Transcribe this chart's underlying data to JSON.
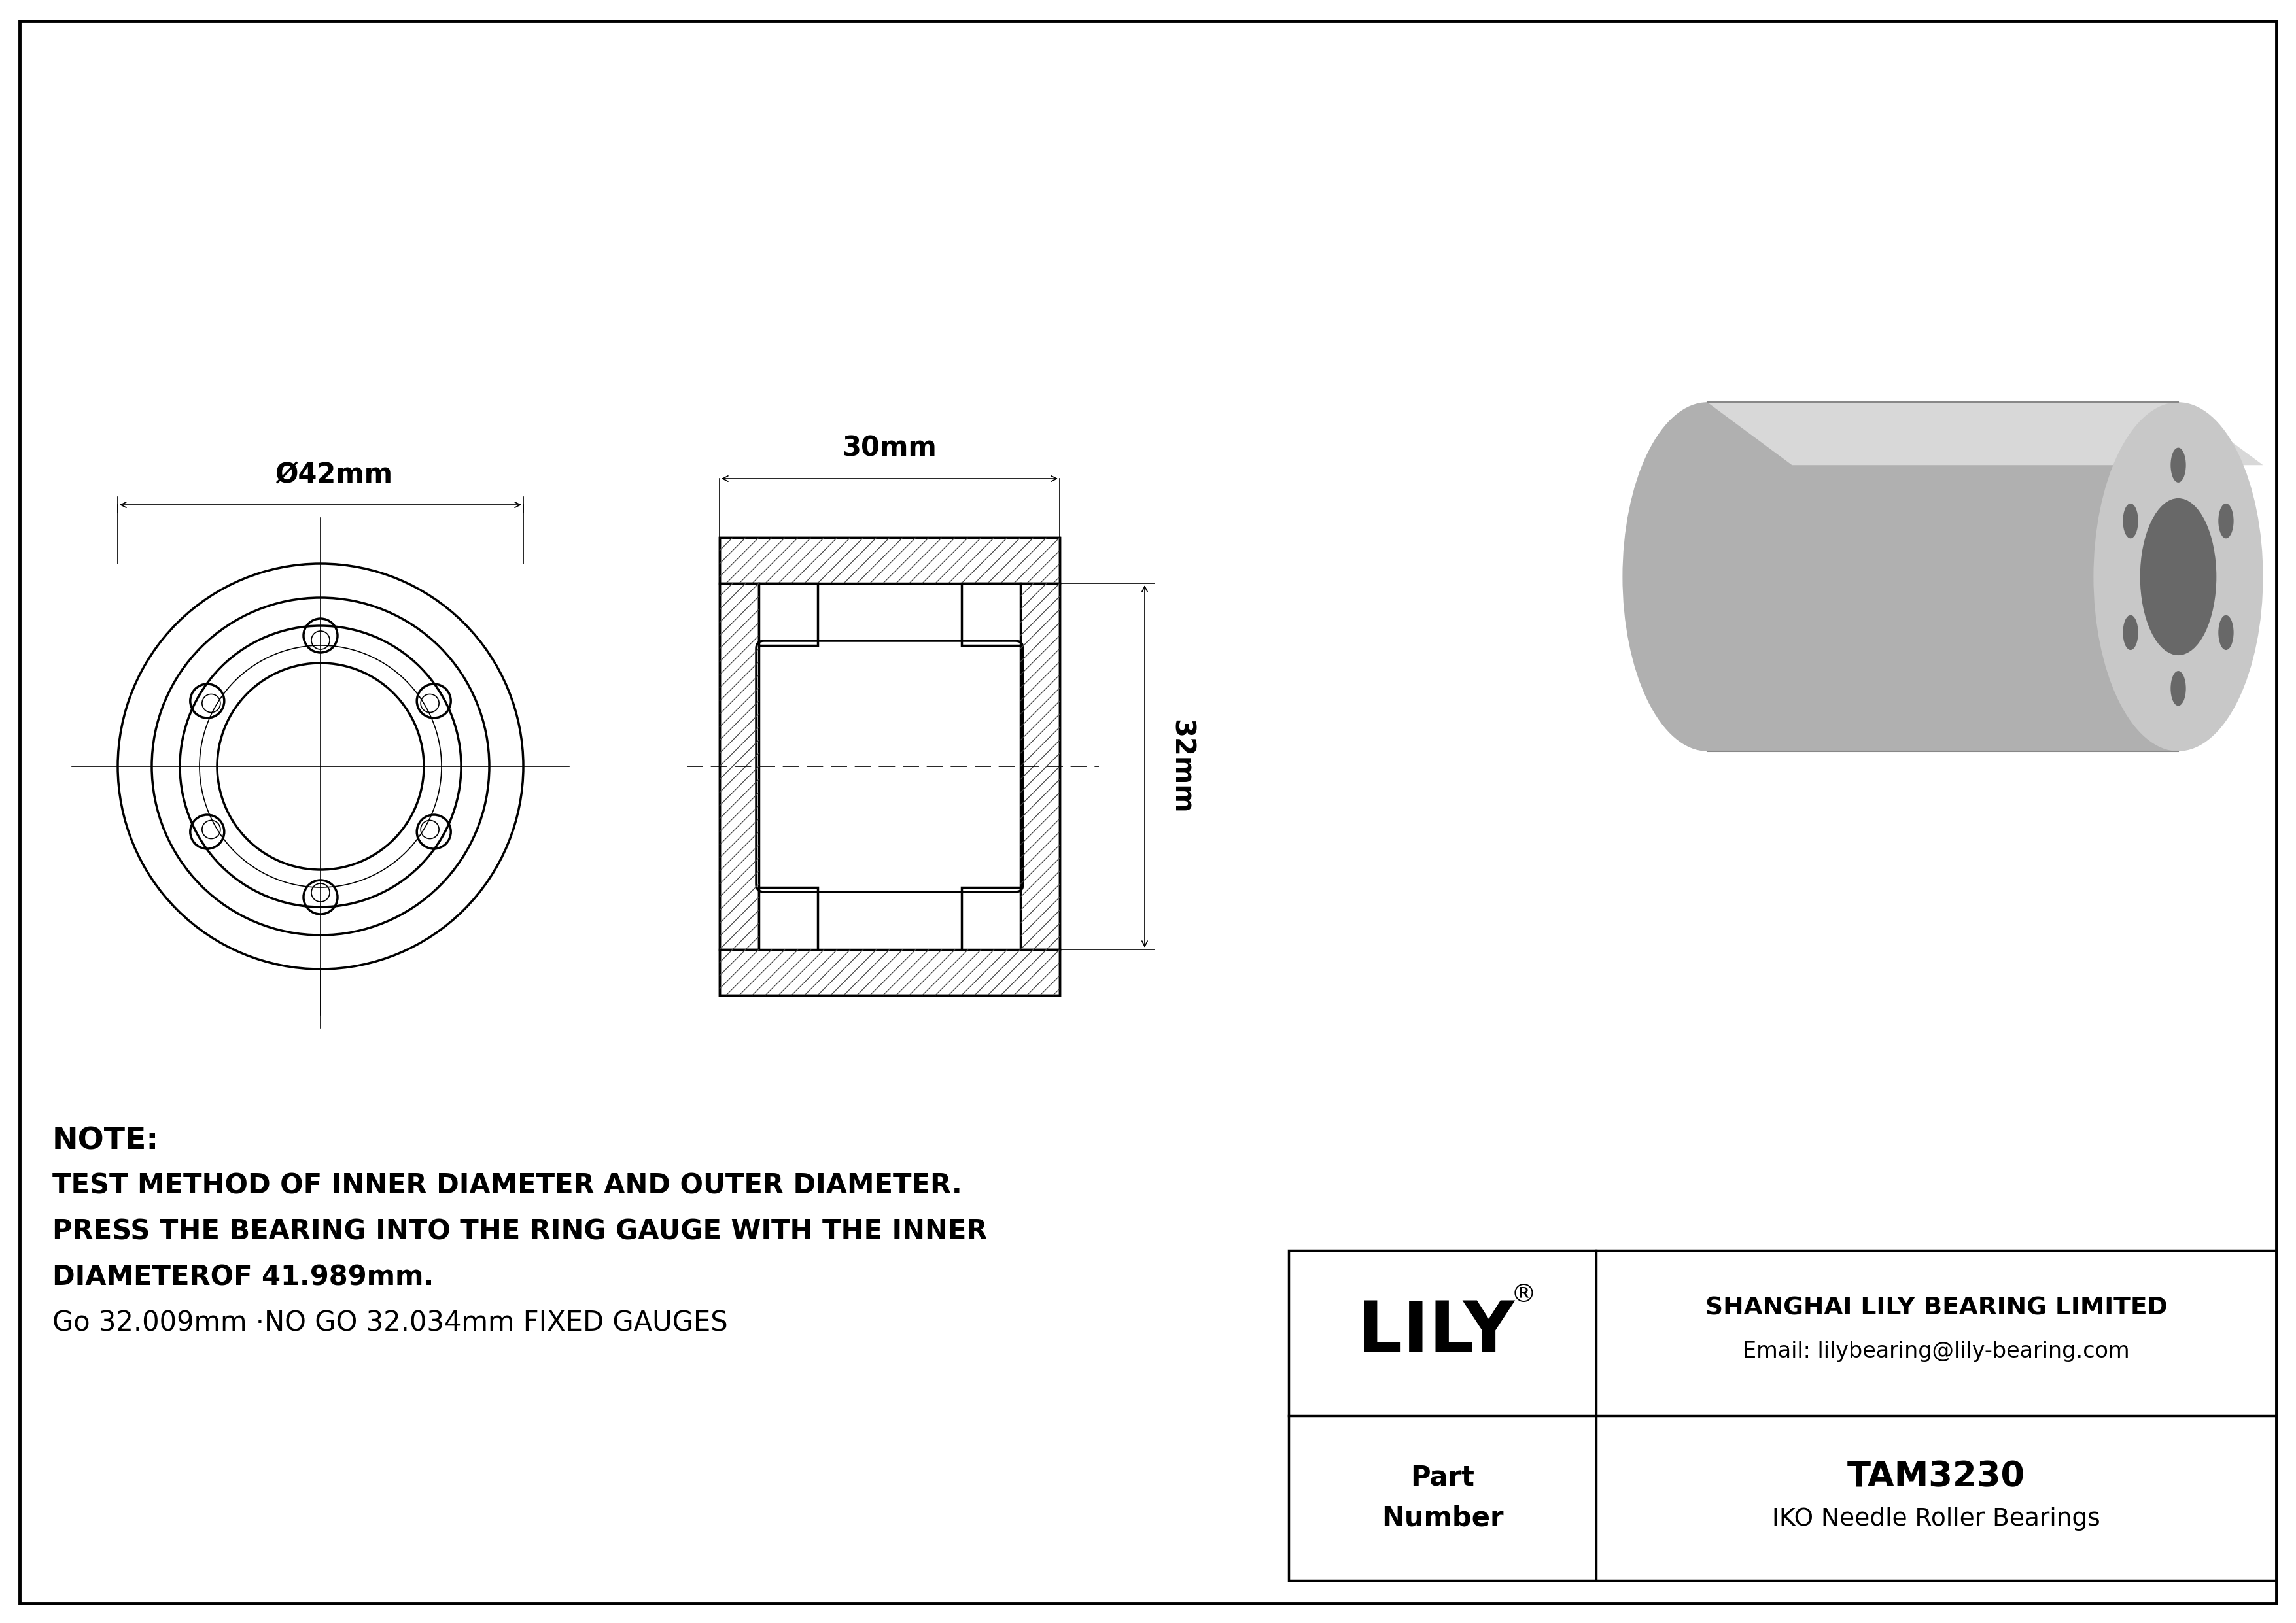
{
  "bg_color": "#ffffff",
  "line_color": "#000000",
  "note_line1": "NOTE:",
  "note_line2": "TEST METHOD OF INNER DIAMETER AND OUTER DIAMETER.",
  "note_line3": "PRESS THE BEARING INTO THE RING GAUGE WITH THE INNER",
  "note_line4": "DIAMETEROF 41.989mm.",
  "note_line5": "Go 32.009mm ·NO GO 32.034mm FIXED GAUGES",
  "company_name": "SHANGHAI LILY BEARING LIMITED",
  "company_email": "Email: lilybearing@lily-bearing.com",
  "brand": "LILY",
  "part_label": "Part\nNumber",
  "part_number": "TAM3230",
  "part_type": "IKO Needle Roller Bearings",
  "dim_outer": "Ø42mm",
  "dim_width": "30mm",
  "dim_height": "32mm"
}
